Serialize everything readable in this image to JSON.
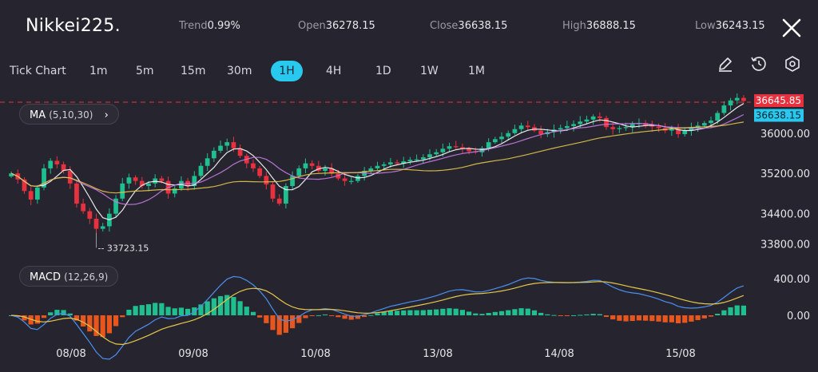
{
  "header": {
    "symbol": "Nikkei225.",
    "trend_label": "Trend",
    "trend_value": "0.99%",
    "open_label": "Open",
    "open_value": "36278.15",
    "close_label": "Close",
    "close_value": "36638.15",
    "high_label": "High",
    "high_value": "36888.15",
    "low_label": "Low",
    "low_value": "36243.15"
  },
  "timeframes": {
    "items": [
      "Tick Chart",
      "1m",
      "5m",
      "15m",
      "30m",
      "1H",
      "4H",
      "1D",
      "1W",
      "1M"
    ],
    "active": "1H"
  },
  "toolbar": {
    "draw_icon": "pencil-icon",
    "history_icon": "clock-reset-icon",
    "settings_icon": "hexagon-settings-icon"
  },
  "indicators": {
    "ma_name": "MA",
    "ma_params": "(5,10,30)",
    "macd_name": "MACD",
    "macd_params": "(12,26,9)"
  },
  "colors": {
    "background": "#26252f",
    "up": "#1fbf8f",
    "down": "#e8313f",
    "ma5": "#ffffff",
    "ma10": "#c97be6",
    "ma30": "#e6c84a",
    "macd": "#4a8ff0",
    "signal": "#e6c84a",
    "hist_pos": "#1fbf8f",
    "hist_neg": "#e8561e",
    "accent": "#28c8ef"
  },
  "chart_data": [
    {
      "type": "candlestick",
      "x": [
        "08/08",
        "09/08",
        "10/08",
        "13/08",
        "14/08",
        "15/08"
      ],
      "y_ticks": [
        "36000.00",
        "35200.00",
        "34400.00",
        "33800.00"
      ],
      "ylim": [
        33650,
        36900
      ],
      "series_ma": [
        "MA5",
        "MA10",
        "MA30"
      ],
      "grid": false,
      "annotations": {
        "low_marker": "33723.15",
        "high_price_tag": "36645.85",
        "current_price_tag": "36638.15"
      },
      "closes": [
        35200,
        35080,
        34850,
        34680,
        34920,
        35300,
        35450,
        35380,
        35250,
        35000,
        34600,
        34450,
        34300,
        34100,
        34150,
        34400,
        34700,
        35000,
        35120,
        35050,
        34950,
        35000,
        35100,
        35050,
        34800,
        34900,
        35050,
        34950,
        35150,
        35350,
        35500,
        35650,
        35750,
        35820,
        35700,
        35550,
        35400,
        35300,
        35150,
        34980,
        34700,
        34600,
        34950,
        35150,
        35300,
        35400,
        35350,
        35250,
        35300,
        35200,
        35100,
        35050,
        35050,
        35150,
        35250,
        35300,
        35350,
        35380,
        35420,
        35400,
        35440,
        35470,
        35480,
        35520,
        35580,
        35620,
        35690,
        35740,
        35720,
        35690,
        35640,
        35620,
        35700,
        35820,
        35880,
        35930,
        36000,
        36080,
        36150,
        36120,
        36050,
        35980,
        36020,
        36070,
        36100,
        36140,
        36180,
        36230,
        36270,
        36330,
        36300,
        36120,
        36080,
        36100,
        36120,
        36180,
        36200,
        36150,
        36130,
        36100,
        36050,
        36080,
        35980,
        36050,
        36100,
        36150,
        36200,
        36250,
        36400,
        36550,
        36650,
        36700,
        36640
      ]
    },
    {
      "type": "macd",
      "y_ticks": [
        "400.00",
        "0.00"
      ],
      "series": [
        "MACD",
        "Signal",
        "Histogram"
      ]
    }
  ]
}
